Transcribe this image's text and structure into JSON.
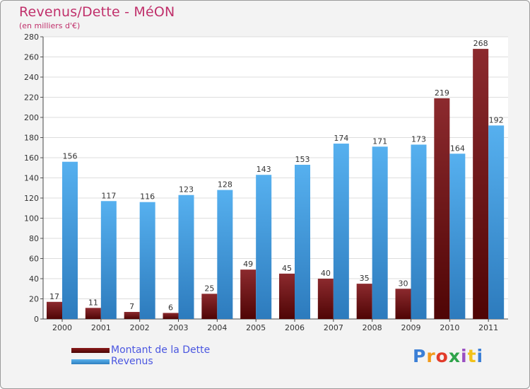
{
  "header": {
    "title": "Revenus/Dette - MéON",
    "subtitle": "(en milliers d'€)"
  },
  "legend": {
    "items": [
      {
        "label": "Montant de la Dette",
        "color": "#6b0c0c"
      },
      {
        "label": "Revenus",
        "color": "#4ba3e3"
      }
    ]
  },
  "logo": {
    "text": "Proxiti"
  },
  "chart_data": {
    "type": "bar",
    "title": "Revenus/Dette - MéON",
    "ylabel": "(en milliers d'€)",
    "xlabel": "",
    "categories": [
      "2000",
      "2001",
      "2002",
      "2003",
      "2004",
      "2005",
      "2006",
      "2007",
      "2008",
      "2009",
      "2010",
      "2011"
    ],
    "series": [
      {
        "name": "Montant de la Dette",
        "color": "#7a1414",
        "values": [
          17,
          11,
          7,
          6,
          25,
          49,
          45,
          40,
          35,
          30,
          219,
          268
        ]
      },
      {
        "name": "Revenus",
        "color": "#4ba3e3",
        "values": [
          156,
          117,
          116,
          123,
          128,
          143,
          153,
          174,
          171,
          173,
          164,
          192
        ]
      }
    ],
    "ylim": [
      0,
      280
    ],
    "yticks": [
      0,
      20,
      40,
      60,
      80,
      100,
      120,
      140,
      160,
      180,
      200,
      220,
      240,
      260,
      280
    ],
    "grid": true,
    "legend": "bottom-left"
  }
}
